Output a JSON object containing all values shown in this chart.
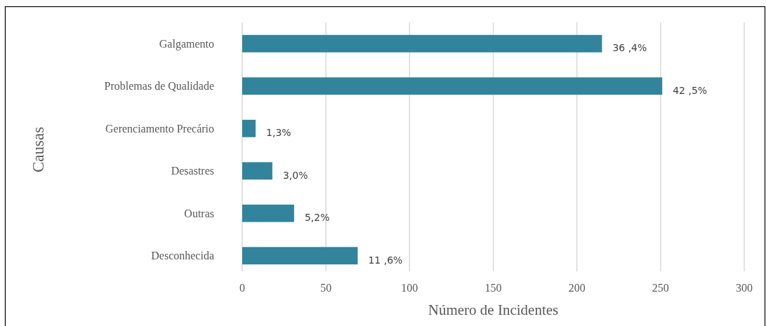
{
  "chart_data": {
    "type": "bar",
    "orientation": "horizontal",
    "xlabel": "Número de Incidentes",
    "ylabel": "Causas",
    "categories": [
      "Galgamento",
      "Problemas de Qualidade",
      "Gerenciamento Precário",
      "Desastres",
      "Outras",
      "Desconhecida"
    ],
    "values": [
      215,
      251,
      8,
      18,
      31,
      69
    ],
    "color": "#31849b",
    "annotations": [
      {
        "text": "36 ,4%",
        "x": 215,
        "y": "Galgamento"
      },
      {
        "text": "42 ,5%",
        "x": 251,
        "y": "Problemas de Qualidade"
      },
      {
        "text": "1,3%",
        "x": 8,
        "y": "Gerenciamento Precário"
      },
      {
        "text": "3,0%",
        "x": 18,
        "y": "Desastres"
      },
      {
        "text": "5,2%",
        "x": 31,
        "y": "Outras"
      },
      {
        "text": "11 ,6%",
        "x": 69,
        "y": "Desconhecida"
      }
    ],
    "xlim": [
      0,
      300
    ],
    "xticks": [
      0,
      50,
      100,
      150,
      200,
      250,
      300
    ],
    "grid": "x"
  }
}
